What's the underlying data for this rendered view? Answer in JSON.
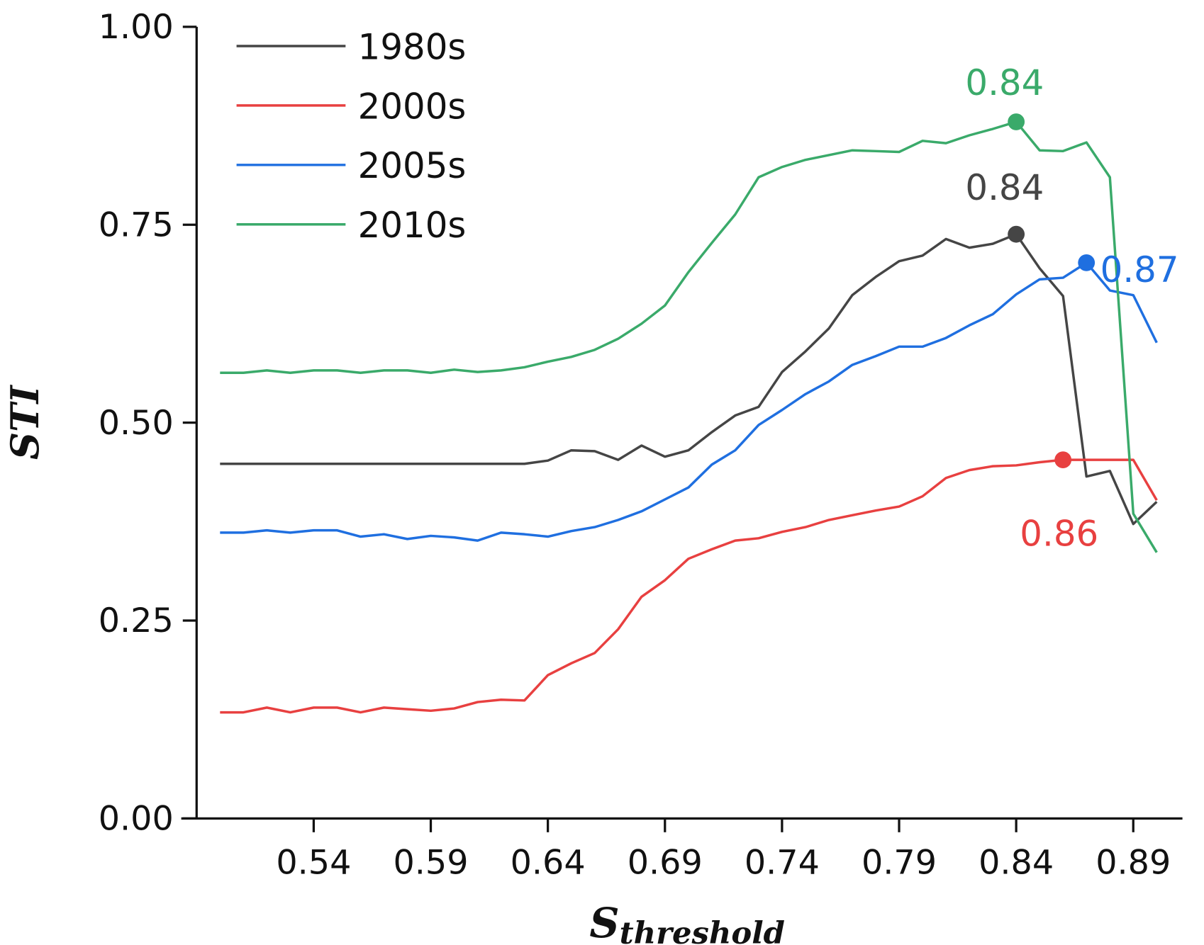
{
  "chart_data": {
    "type": "line",
    "title": "",
    "xlabel": "S",
    "xlabel_sub": "threshold",
    "ylabel": "STI",
    "xlim": [
      0.49,
      0.911
    ],
    "ylim": [
      0,
      1
    ],
    "grid": false,
    "legend_position": "top-left",
    "x_ticks": [
      "0.54",
      "0.59",
      "0.64",
      "0.69",
      "0.74",
      "0.79",
      "0.84",
      "0.89"
    ],
    "x_tick_values": [
      0.54,
      0.59,
      0.64,
      0.69,
      0.74,
      0.79,
      0.84,
      0.89
    ],
    "y_ticks": [
      "0.00",
      "0.25",
      "0.50",
      "0.75",
      "1.00"
    ],
    "y_tick_values": [
      0,
      0.25,
      0.5,
      0.75,
      1.0
    ],
    "x": [
      0.5,
      0.51,
      0.52,
      0.53,
      0.54,
      0.55,
      0.56,
      0.57,
      0.58,
      0.59,
      0.6,
      0.61,
      0.62,
      0.63,
      0.64,
      0.65,
      0.66,
      0.67,
      0.68,
      0.69,
      0.7,
      0.71,
      0.72,
      0.73,
      0.74,
      0.75,
      0.76,
      0.77,
      0.78,
      0.79,
      0.8,
      0.81,
      0.82,
      0.83,
      0.84,
      0.85,
      0.86,
      0.87,
      0.88,
      0.89,
      0.9
    ],
    "series": [
      {
        "name": "1980s",
        "color": "#454545",
        "values": [
          0.448,
          0.448,
          0.448,
          0.448,
          0.448,
          0.448,
          0.448,
          0.448,
          0.448,
          0.448,
          0.448,
          0.448,
          0.448,
          0.448,
          0.452,
          0.465,
          0.464,
          0.453,
          0.471,
          0.457,
          0.465,
          0.488,
          0.509,
          0.52,
          0.564,
          0.59,
          0.619,
          0.661,
          0.684,
          0.704,
          0.711,
          0.732,
          0.721,
          0.726,
          0.738,
          0.695,
          0.66,
          0.432,
          0.439,
          0.372,
          0.4
        ],
        "peak": {
          "x": 0.84,
          "y": 0.738,
          "label": "0.84"
        }
      },
      {
        "name": "2000s",
        "color": "#e84040",
        "values": [
          0.134,
          0.134,
          0.14,
          0.134,
          0.14,
          0.14,
          0.134,
          0.14,
          0.138,
          0.136,
          0.139,
          0.147,
          0.15,
          0.149,
          0.181,
          0.196,
          0.209,
          0.239,
          0.28,
          0.301,
          0.328,
          0.34,
          0.351,
          0.354,
          0.362,
          0.368,
          0.377,
          0.383,
          0.389,
          0.394,
          0.407,
          0.43,
          0.44,
          0.445,
          0.446,
          0.45,
          0.453,
          0.453,
          0.453,
          0.453,
          0.402
        ],
        "peak": {
          "x": 0.86,
          "y": 0.453,
          "label": "0.86"
        }
      },
      {
        "name": "2005s",
        "color": "#1f6fe0",
        "values": [
          0.361,
          0.361,
          0.364,
          0.361,
          0.364,
          0.364,
          0.356,
          0.359,
          0.353,
          0.357,
          0.355,
          0.351,
          0.361,
          0.359,
          0.356,
          0.363,
          0.368,
          0.377,
          0.388,
          0.403,
          0.418,
          0.447,
          0.465,
          0.497,
          0.516,
          0.536,
          0.552,
          0.573,
          0.584,
          0.596,
          0.596,
          0.607,
          0.623,
          0.637,
          0.662,
          0.681,
          0.683,
          0.702,
          0.667,
          0.661,
          0.601
        ],
        "peak": {
          "x": 0.87,
          "y": 0.702,
          "label": "0.87"
        }
      },
      {
        "name": "2010s",
        "color": "#3aaa6a",
        "values": [
          0.563,
          0.563,
          0.566,
          0.563,
          0.566,
          0.566,
          0.563,
          0.566,
          0.566,
          0.563,
          0.567,
          0.564,
          0.566,
          0.57,
          0.577,
          0.583,
          0.592,
          0.606,
          0.625,
          0.648,
          0.69,
          0.727,
          0.763,
          0.81,
          0.823,
          0.832,
          0.838,
          0.844,
          0.843,
          0.842,
          0.856,
          0.853,
          0.863,
          0.871,
          0.88,
          0.844,
          0.843,
          0.854,
          0.81,
          0.385,
          0.336
        ],
        "peak": {
          "x": 0.84,
          "y": 0.88,
          "label": "0.84"
        }
      }
    ]
  }
}
